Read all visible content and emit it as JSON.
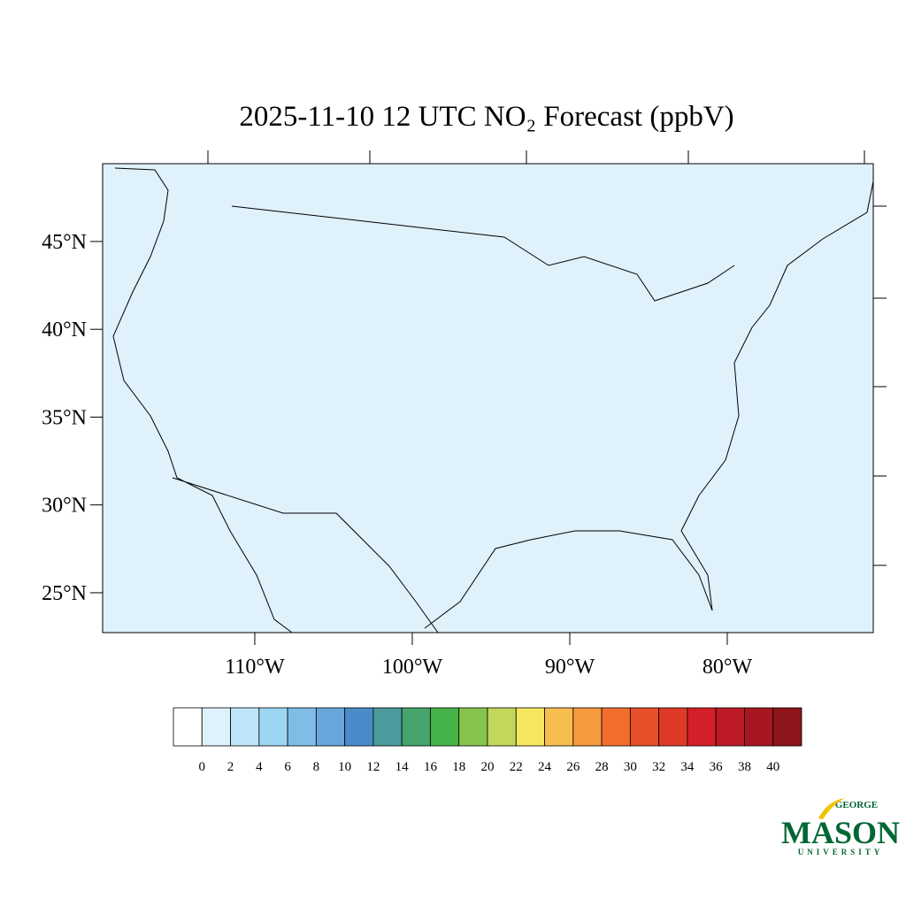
{
  "map": {
    "title": "2025-11-10 12 UTC NO₂ Forecast (ppbV)",
    "xlim": [
      -119.66,
      -70.73
    ],
    "ylim": [
      22.73,
      49.43
    ],
    "xticks": [
      {
        "value": -110,
        "label": "110°W"
      },
      {
        "value": -100,
        "label": "100°W"
      },
      {
        "value": -90,
        "label": "90°W"
      },
      {
        "value": -80,
        "label": "80°W"
      }
    ],
    "yticks": [
      {
        "value": 25,
        "label": "25°N"
      },
      {
        "value": 30,
        "label": "30°N"
      },
      {
        "value": 35,
        "label": "35°N"
      },
      {
        "value": 40,
        "label": "40°N"
      },
      {
        "value": 45,
        "label": "45°N"
      }
    ],
    "background": "#dff1fb"
  },
  "colorbar": {
    "levels": [
      0,
      2,
      4,
      6,
      8,
      10,
      12,
      14,
      16,
      18,
      20,
      22,
      24,
      26,
      28,
      30,
      32,
      34,
      36,
      38,
      40
    ],
    "colors": [
      "#ffffff",
      "#dff1fb",
      "#bde5f8",
      "#9dd6f3",
      "#7fbde6",
      "#67a6dc",
      "#4a8bc9",
      "#4b9a9c",
      "#46a56d",
      "#45b347",
      "#85c44e",
      "#c3d75a",
      "#f7e75f",
      "#f8be4d",
      "#f79a3e",
      "#f36d2d",
      "#e84f2b",
      "#df3a28",
      "#d41f28",
      "#bd1a26",
      "#a8171f",
      "#8e1519"
    ]
  },
  "logo": {
    "top": "GEORGE",
    "main": "MASON",
    "bottom": "UNIVERSITY"
  }
}
